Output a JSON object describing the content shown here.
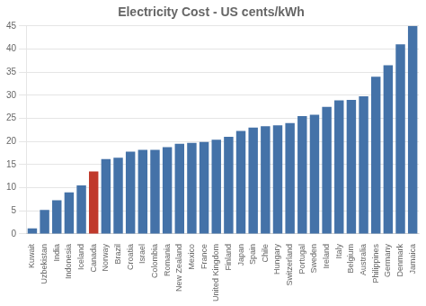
{
  "chart_data": {
    "type": "bar",
    "title": "Electricity Cost - US cents/kWh",
    "categories": [
      "Kuwait",
      "Uzbekistan",
      "India",
      "Indonesia",
      "Iceland",
      "Canada",
      "Norway",
      "Brazil",
      "Croatia",
      "Israel",
      "Colombia",
      "Romania",
      "New Zealand",
      "Mexico",
      "France",
      "United Kingdom",
      "Finland",
      "Japan",
      "Spain",
      "Chile",
      "Hungary",
      "Switzerland",
      "Portugal",
      "Sweden",
      "Ireland",
      "Italy",
      "Belgium",
      "Australia",
      "Philippines",
      "Germany",
      "Denmark",
      "Jamaica"
    ],
    "values": [
      1.2,
      5.2,
      7.3,
      9.0,
      10.5,
      13.5,
      16.2,
      16.5,
      17.8,
      18.2,
      18.2,
      18.8,
      19.5,
      19.7,
      19.9,
      20.4,
      21.0,
      22.3,
      23.0,
      23.3,
      23.5,
      24.0,
      25.5,
      25.8,
      27.5,
      28.9,
      29.0,
      29.8,
      34.0,
      36.5,
      41.0,
      45.0
    ],
    "colors": [
      "#4472a8",
      "#4472a8",
      "#4472a8",
      "#4472a8",
      "#4472a8",
      "#c0392b",
      "#4472a8",
      "#4472a8",
      "#4472a8",
      "#4472a8",
      "#4472a8",
      "#4472a8",
      "#4472a8",
      "#4472a8",
      "#4472a8",
      "#4472a8",
      "#4472a8",
      "#4472a8",
      "#4472a8",
      "#4472a8",
      "#4472a8",
      "#4472a8",
      "#4472a8",
      "#4472a8",
      "#4472a8",
      "#4472a8",
      "#4472a8",
      "#4472a8",
      "#4472a8",
      "#4472a8",
      "#4472a8",
      "#4472a8"
    ],
    "ylim": [
      0,
      45
    ],
    "yticks": [
      0,
      5,
      10,
      15,
      20,
      25,
      30,
      35,
      40,
      45
    ],
    "grid": true
  }
}
